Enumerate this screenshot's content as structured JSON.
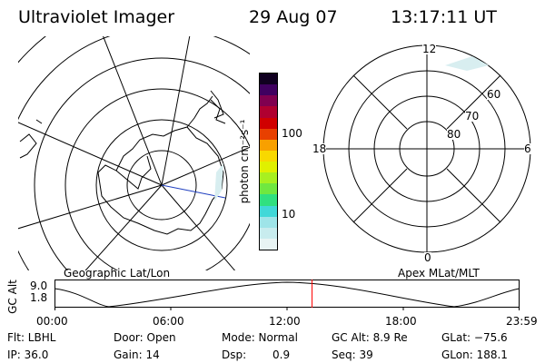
{
  "header": {
    "instrument": "Ultraviolet Imager",
    "date": "29 Aug 07",
    "time": "13:17:11 UT"
  },
  "colorbar": {
    "unit_label": "photon cm⁻²s⁻¹",
    "tick_100": "100",
    "tick_10": "10",
    "colors": [
      "#e8f4f4",
      "#c8ecee",
      "#9ee4e8",
      "#40d8d8",
      "#30e080",
      "#70e840",
      "#a8f020",
      "#e0f000",
      "#f8d800",
      "#f8a000",
      "#e84000",
      "#d00000",
      "#b00030",
      "#800050",
      "#400060",
      "#100020"
    ]
  },
  "left_panel": {
    "caption": "Geographic Lat/Lon"
  },
  "right_panel": {
    "caption": "Apex MLat/MLT",
    "mlt_12": "12",
    "mlt_18": "18",
    "mlt_6": "6",
    "mlt_0": "0",
    "lat_60": "60",
    "lat_70": "70",
    "lat_80": "80"
  },
  "altitude_plot": {
    "ylabel": "GC Alt",
    "y_top": "9.0",
    "y_bottom": "1.8",
    "x_ticks": [
      "00:00",
      "06:00",
      "12:00",
      "18:00",
      "23:59"
    ],
    "current_time_marker_hours": 13.29,
    "marker_color": "#ff0000"
  },
  "info": {
    "filter": "Flt: LBHL",
    "ip": "IP: 36.0",
    "door": "Door: Open",
    "gain": "Gain: 14",
    "mode": "Mode: Normal",
    "dsp_label": "Dsp:",
    "dsp_value": "0.9",
    "gc_alt": "GC Alt: 8.9 Re",
    "seq": "Seq: 39",
    "glat": "GLat: −75.6",
    "glon": "GLon: 188.1"
  }
}
